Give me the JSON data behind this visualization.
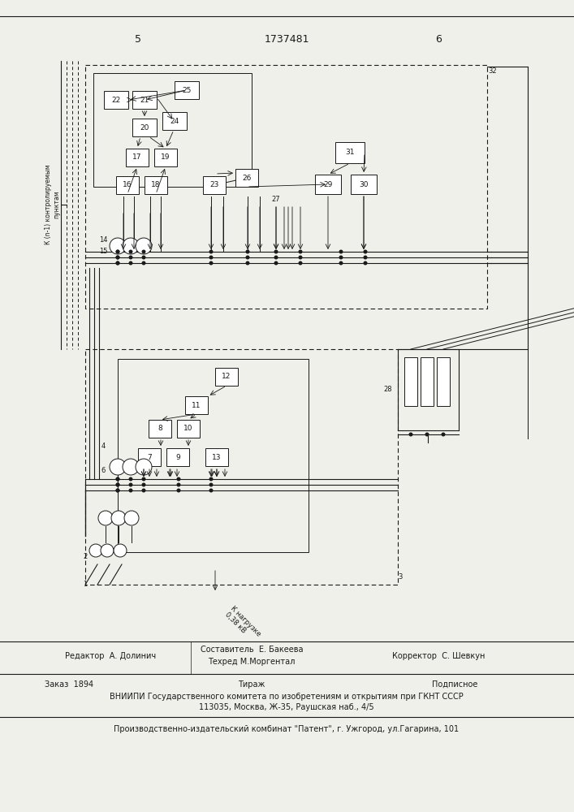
{
  "page_number_left": "5",
  "patent_number": "1737481",
  "page_number_right": "6",
  "bg_color": "#f0f0eb",
  "line_color": "#1a1a1a",
  "box_fill": "#ffffff",
  "footer_line1_left": "Редактор  А. Долинич",
  "footer_line1_center_top": "Составитель  Е. Бакеева",
  "footer_line1_center_bot": "Техред М.Моргентал",
  "footer_line1_right": "Корректор  С. Шевкун",
  "footer_line2": "Заказ  1894",
  "footer_line2b": "Тираж",
  "footer_line2c": "Подписное",
  "footer_line3": "ВНИИПИ Государственного комитета по изобретениям и открытиям при ГКНТ СССР",
  "footer_line4": "113035, Москва, Ж-35, Раушская наб., 4/5",
  "footer_line5": "Производственно-издательский комбинат \"Патент\", г. Ужгород, ул.Гагарина, 101",
  "side_label": "К (n-1) контролируемым\nпунктам",
  "bottom_label": "К нагрузке\n0,38 кВ"
}
